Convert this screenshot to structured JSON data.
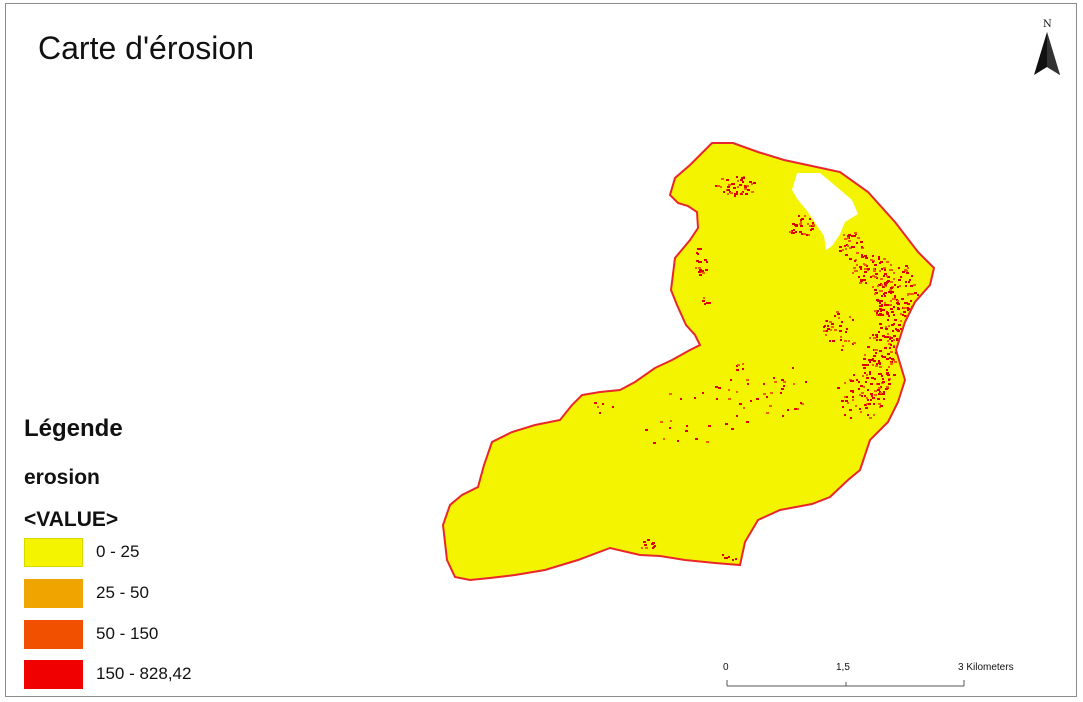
{
  "map": {
    "title": "Carte d'érosion",
    "north_arrow": {
      "label": "N",
      "icon": "north-arrow-icon"
    },
    "legend": {
      "heading": "Légende",
      "layer_name": "erosion",
      "field_name": "<VALUE>",
      "classes": [
        {
          "label": "0 - 25",
          "color": "#f4f400"
        },
        {
          "label": "25 - 50",
          "color": "#f0a400"
        },
        {
          "label": "50 - 150",
          "color": "#f05000"
        },
        {
          "label": "150 - 828,42",
          "color": "#f00000"
        }
      ]
    },
    "scale_bar": {
      "ticks": [
        "0",
        "1,5",
        "3 Kilometers"
      ]
    },
    "colors": {
      "boundary": "#e8272a",
      "dominant_class": "#f4f400",
      "high_erosion": "#e30000",
      "mid_erosion": "#f06000"
    }
  }
}
